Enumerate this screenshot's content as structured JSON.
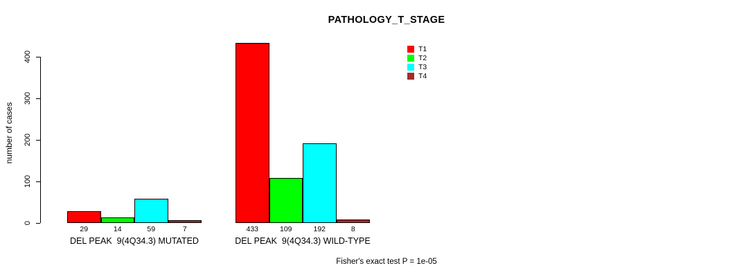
{
  "chart_data": {
    "type": "bar",
    "title": "PATHOLOGY_T_STAGE",
    "ylabel": "number of cases",
    "xlabel": "",
    "ylim": [
      0,
      400
    ],
    "ytick_step": 100,
    "grid": false,
    "legend_position": "top-right",
    "bar_border_color": "#000000",
    "categories": [
      "DEL PEAK  9(4Q34.3) MUTATED",
      "DEL PEAK  9(4Q34.3) WILD-TYPE"
    ],
    "series": [
      {
        "name": "T1",
        "color": "#FF0000",
        "values": [
          29,
          433
        ]
      },
      {
        "name": "T2",
        "color": "#00FF00",
        "values": [
          14,
          109
        ]
      },
      {
        "name": "T3",
        "color": "#00FFFF",
        "values": [
          59,
          192
        ]
      },
      {
        "name": "T4",
        "color": "#A52A2A",
        "values": [
          7,
          8
        ]
      }
    ],
    "caption": "Fisher's exact test P = 1e-05"
  }
}
